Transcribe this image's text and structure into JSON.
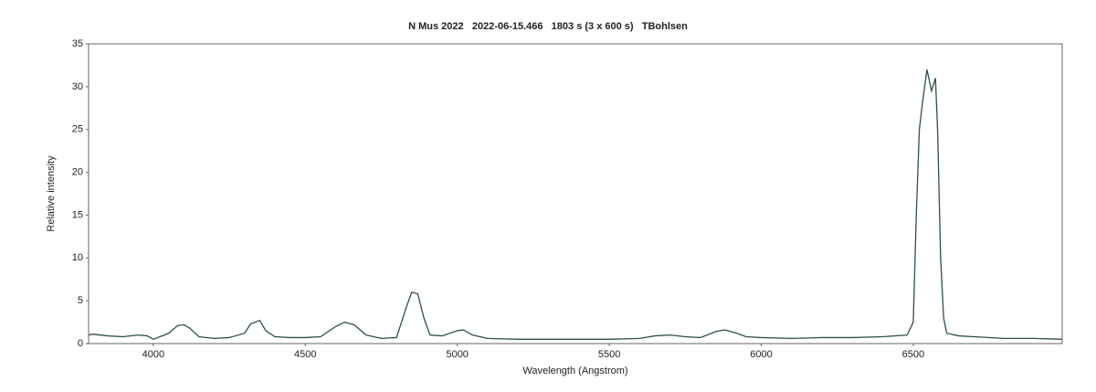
{
  "chart_data": {
    "type": "line",
    "title": "N Mus 2022   2022-06-15.466   1803 s (3 x 600 s)   TBohlsen",
    "x_label": "Wavelength (Angstrom)",
    "y_label": "Relative intensity",
    "xlim": [
      3787,
      6990
    ],
    "ylim": [
      0,
      35
    ],
    "xticks": [
      4000,
      4500,
      5000,
      5500,
      6000,
      6500
    ],
    "yticks": [
      0,
      5,
      10,
      15,
      20,
      25,
      30,
      35
    ],
    "grid": false,
    "series": [
      {
        "color": "#2f4f4f",
        "x": [
          3787,
          3800,
          3850,
          3900,
          3950,
          3980,
          4000,
          4050,
          4080,
          4100,
          4120,
          4150,
          4200,
          4250,
          4300,
          4320,
          4350,
          4370,
          4400,
          4450,
          4500,
          4550,
          4600,
          4630,
          4660,
          4700,
          4750,
          4800,
          4830,
          4850,
          4870,
          4890,
          4910,
          4950,
          5000,
          5020,
          5050,
          5100,
          5200,
          5300,
          5400,
          5500,
          5600,
          5650,
          5700,
          5750,
          5800,
          5850,
          5880,
          5920,
          5950,
          6000,
          6100,
          6200,
          6300,
          6400,
          6480,
          6500,
          6510,
          6520,
          6530,
          6545,
          6560,
          6573,
          6580,
          6590,
          6600,
          6610,
          6650,
          6700,
          6800,
          6900,
          6990
        ],
        "values": [
          1.0,
          1.1,
          0.9,
          0.8,
          1.0,
          0.9,
          0.5,
          1.2,
          2.1,
          2.2,
          1.8,
          0.8,
          0.6,
          0.7,
          1.2,
          2.3,
          2.7,
          1.5,
          0.8,
          0.7,
          0.7,
          0.8,
          2.0,
          2.5,
          2.2,
          1.0,
          0.6,
          0.7,
          4.0,
          6.0,
          5.8,
          3.0,
          1.0,
          0.9,
          1.5,
          1.6,
          1.0,
          0.6,
          0.5,
          0.5,
          0.5,
          0.5,
          0.6,
          0.9,
          1.0,
          0.8,
          0.7,
          1.4,
          1.6,
          1.2,
          0.8,
          0.7,
          0.6,
          0.7,
          0.7,
          0.8,
          1.0,
          2.5,
          15,
          25,
          28,
          32,
          29.5,
          31,
          25,
          10,
          3,
          1.2,
          0.9,
          0.8,
          0.6,
          0.6,
          0.5
        ]
      }
    ]
  }
}
